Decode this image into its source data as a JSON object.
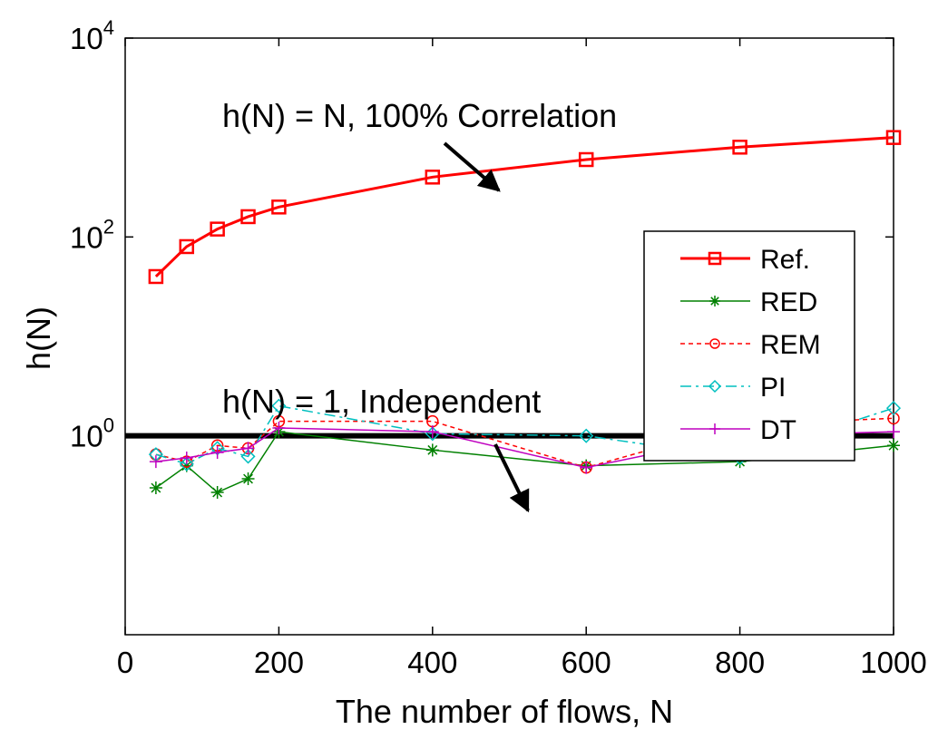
{
  "chart_data": {
    "type": "line",
    "title": "",
    "xlabel": "The number of flows, N",
    "ylabel": "h(N)",
    "xlim": [
      0,
      1000
    ],
    "ylim": [
      0.01,
      10000
    ],
    "y_scale": "log",
    "grid": false,
    "legend_position": "right",
    "x_ticks": [
      {
        "value": 0,
        "label": "0"
      },
      {
        "value": 200,
        "label": "200"
      },
      {
        "value": 400,
        "label": "400"
      },
      {
        "value": 600,
        "label": "600"
      },
      {
        "value": 800,
        "label": "800"
      },
      {
        "value": 1000,
        "label": "1000"
      }
    ],
    "y_ticks": [
      {
        "value": 1,
        "base": "10",
        "exp": "0"
      },
      {
        "value": 100,
        "base": "10",
        "exp": "2"
      },
      {
        "value": 10000,
        "base": "10",
        "exp": "4"
      }
    ],
    "series": [
      {
        "name": "Ref.",
        "color": "#ff0000",
        "marker": "square",
        "dash": "solid",
        "x": [
          40,
          80,
          120,
          160,
          200,
          400,
          600,
          800,
          1000
        ],
        "y": [
          40,
          80,
          120,
          160,
          200,
          400,
          600,
          800,
          1000
        ]
      },
      {
        "name": "RED",
        "color": "#008000",
        "marker": "star",
        "dash": "solid",
        "x": [
          40,
          80,
          120,
          160,
          200,
          400,
          600,
          800,
          1000
        ],
        "y": [
          0.3,
          0.5,
          0.27,
          0.37,
          1.1,
          0.72,
          0.5,
          0.55,
          0.8
        ]
      },
      {
        "name": "REM",
        "color": "#ff0000",
        "marker": "circle",
        "dash": "dotted",
        "x": [
          40,
          80,
          120,
          160,
          200,
          400,
          600,
          800,
          1000
        ],
        "y": [
          0.65,
          0.55,
          0.8,
          0.75,
          1.4,
          1.4,
          0.48,
          1.3,
          1.5
        ]
      },
      {
        "name": "PI",
        "color": "#00bfbf",
        "marker": "diamond",
        "dash": "dashdot",
        "x": [
          40,
          80,
          120,
          160,
          200,
          400,
          600,
          800,
          1000
        ],
        "y": [
          0.65,
          0.52,
          0.75,
          0.62,
          2.0,
          1.05,
          1.0,
          0.6,
          1.9
        ]
      },
      {
        "name": "DT",
        "color": "#bf00bf",
        "marker": "plus",
        "dash": "solid",
        "x": [
          40,
          80,
          120,
          160,
          200,
          400,
          600,
          800,
          1000
        ],
        "y": [
          0.55,
          0.6,
          0.68,
          0.75,
          1.2,
          1.1,
          0.48,
          1.0,
          1.1
        ]
      }
    ],
    "reference_lines": [
      {
        "y": 1,
        "color": "#000000"
      }
    ],
    "annotations": [
      {
        "text": "h(N) = N, 100% Correlation",
        "arrow_to": {
          "x": 500,
          "y": 450
        }
      },
      {
        "text": "h(N) = 1, Independent",
        "arrow_to": {
          "x": 540,
          "y": 1
        }
      }
    ]
  }
}
